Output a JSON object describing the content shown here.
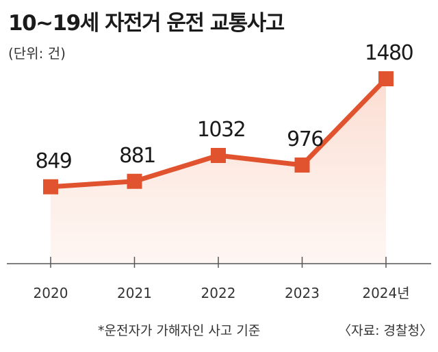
{
  "chart_data": {
    "type": "line",
    "title": "10~19세 자전거 운전 교통사고",
    "unit_label": "(단위: 건)",
    "categories": [
      "2020",
      "2021",
      "2022",
      "2023",
      "2024년"
    ],
    "values": [
      849,
      881,
      1032,
      976,
      1480
    ],
    "data_labels": [
      "849",
      "881",
      "1032",
      "976",
      "1480"
    ],
    "ylim": [
      400,
      1600
    ],
    "grid": false,
    "area_fill": true,
    "colors": {
      "line": "#e0532e",
      "marker": "#e0532e",
      "area": "#fdeae2",
      "axis": "#555555"
    }
  },
  "footer": {
    "note": "*운전자가 가해자인 사고 기준",
    "source": "〈자료: 경찰청〉"
  }
}
